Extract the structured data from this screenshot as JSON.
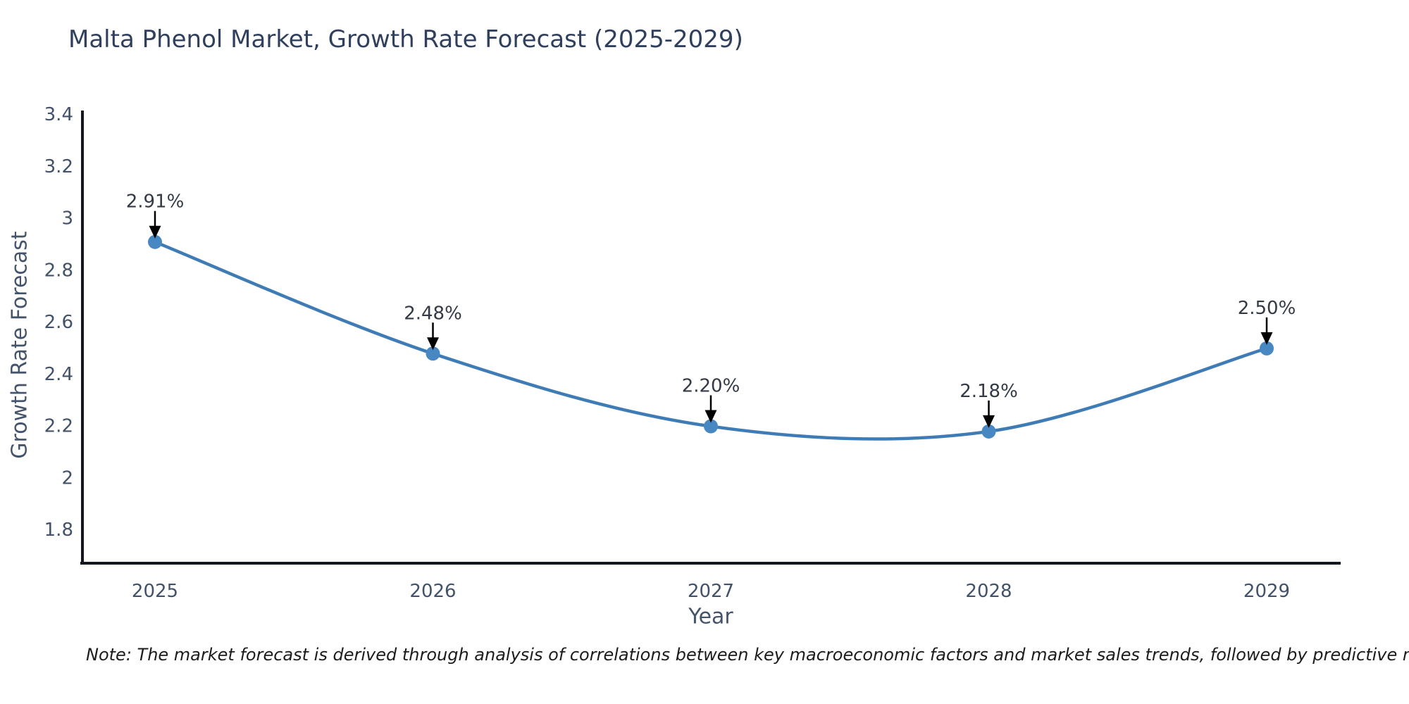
{
  "title": "Malta Phenol Market, Growth Rate Forecast (2025-2029)",
  "note": "Note: The market forecast is derived through analysis of correlations between key macroeconomic factors and market sales trends, followed by predictive modeling to project future sales",
  "chart_data": {
    "type": "line",
    "line_shape": "spline",
    "title": "Malta Phenol Market, Growth Rate Forecast (2025-2029)",
    "xlabel": "Year",
    "ylabel": "Growth Rate Forecast",
    "x": [
      2025,
      2026,
      2027,
      2028,
      2029
    ],
    "series": [
      {
        "name": "Growth Rate Forecast",
        "values": [
          2.91,
          2.48,
          2.2,
          2.18,
          2.5
        ],
        "point_labels": [
          "2.91%",
          "2.48%",
          "2.20%",
          "2.18%",
          "2.50%"
        ]
      }
    ],
    "xtick_labels": [
      "2025",
      "2026",
      "2027",
      "2028",
      "2029"
    ],
    "ytick_labels": [
      "3.4",
      "3.2",
      "3",
      "2.8",
      "2.6",
      "2.4",
      "2.2",
      "2",
      "1.8"
    ],
    "ytick_values": [
      3.4,
      3.2,
      3.0,
      2.8,
      2.6,
      2.4,
      2.2,
      2.0,
      1.8
    ],
    "ylim": [
      1.67,
      3.41
    ],
    "xlim": [
      2024.73,
      2029.27
    ],
    "grid": false,
    "legend": "none",
    "annotations": "arrows-to-points",
    "colors": {
      "line": "#3f7cb5",
      "marker": "#4787c2",
      "axis_line": "#13161f",
      "tick_text": "#42526b",
      "title_text": "#2f3f5c",
      "point_label_text": "#333a45",
      "arrow": "#000000",
      "background": "#ffffff"
    }
  }
}
